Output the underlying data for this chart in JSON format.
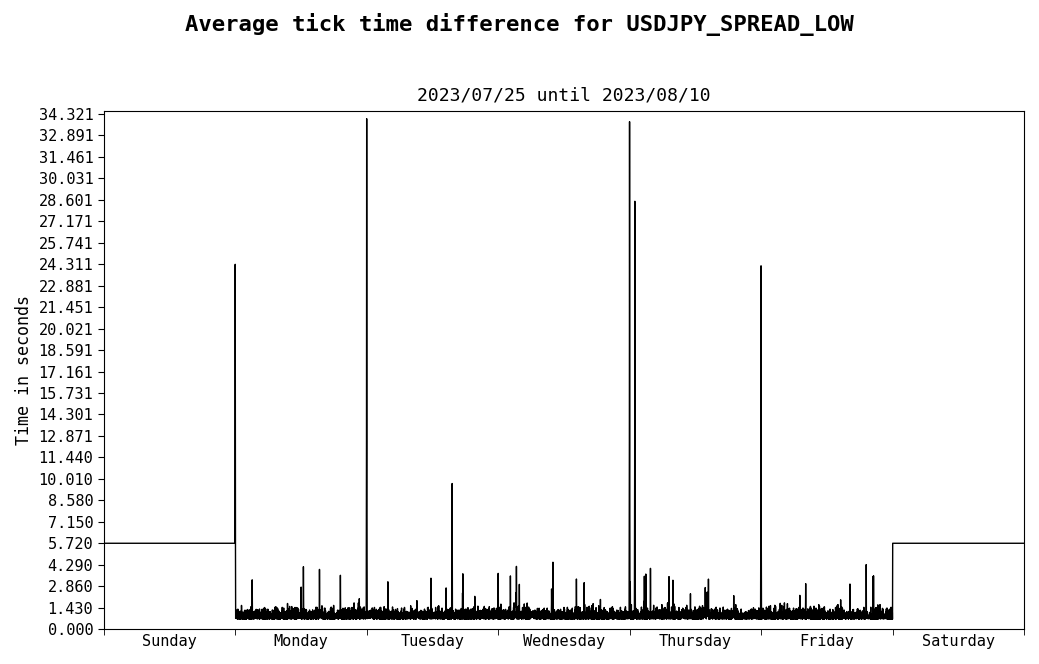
{
  "title": "Average tick time difference for USDJPY_SPREAD_LOW",
  "subtitle": "2023/07/25 until 2023/08/10",
  "ylabel": "Time in seconds",
  "xlabel_ticks": [
    "Sunday",
    "Monday",
    "Tuesday",
    "Wednesday",
    "Thursday",
    "Friday",
    "Saturday"
  ],
  "xlabel_tick_pos": [
    0.5,
    1.5,
    2.5,
    3.5,
    4.5,
    5.5,
    6.5
  ],
  "ylim": [
    0.0,
    34.321
  ],
  "yticks": [
    0.0,
    1.43,
    2.86,
    4.29,
    5.72,
    7.15,
    8.58,
    10.01,
    11.44,
    12.871,
    14.301,
    15.731,
    17.161,
    18.591,
    20.021,
    21.451,
    22.881,
    24.311,
    25.741,
    27.171,
    28.601,
    30.031,
    31.461,
    32.891,
    34.321
  ],
  "line_color": "#000000",
  "line_width": 1.0,
  "bg_color": "#ffffff",
  "title_fontsize": 16,
  "subtitle_fontsize": 13,
  "ylabel_fontsize": 12,
  "tick_label_fontsize": 11
}
